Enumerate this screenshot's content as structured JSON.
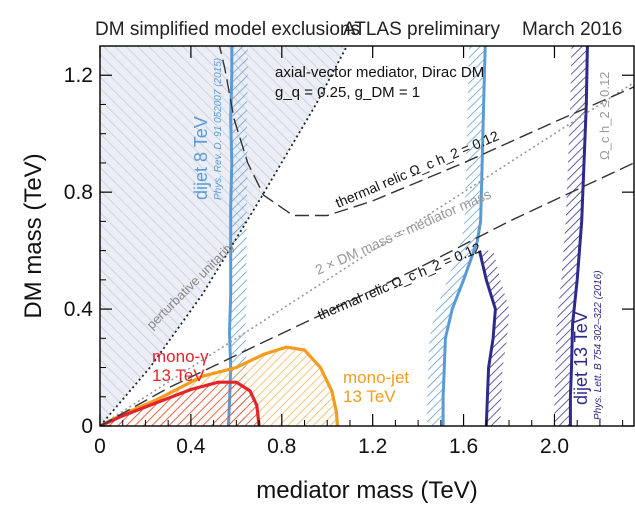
{
  "chart_data": {
    "type": "line",
    "title": "DM simplified model exclusions",
    "header_center": "ATLAS preliminary",
    "header_right": "March 2016",
    "xlabel": "mediator mass (TeV)",
    "ylabel": "DM mass (TeV)",
    "xlim": [
      0,
      2.35
    ],
    "ylim": [
      0,
      1.3
    ],
    "x_ticks": [
      0,
      0.4,
      0.8,
      1.2,
      1.6,
      2.0
    ],
    "x_tick_labels": [
      "0",
      "0.4",
      "0.8",
      "1.2",
      "1.6",
      "2.0"
    ],
    "y_ticks": [
      0,
      0.4,
      0.8,
      1.2
    ],
    "y_tick_labels": [
      "0",
      "0.4",
      "0.8",
      "1.2"
    ],
    "grid": false,
    "model_lines": [
      "axial-vector mediator, Dirac DM",
      "g_q = 0.25, g_DM = 1"
    ],
    "colors": {
      "dijet8": "#5b9bd5",
      "dijet13": "#2e2a8a",
      "monojet": "#f39c1e",
      "monogamma": "#e3242b",
      "relic": "#333333",
      "unitarity": "#222222",
      "diagonal": "#999999",
      "hatch": "#b9bcd6"
    },
    "series": [
      {
        "name": "dijet 8 TeV",
        "ref": "Phys. Rev. D. 91 052007 (2015)",
        "points": [
          [
            0.565,
            0.0
          ],
          [
            0.57,
            0.08
          ],
          [
            0.575,
            0.2
          ],
          [
            0.57,
            0.32
          ],
          [
            0.575,
            0.45
          ],
          [
            0.575,
            0.6
          ],
          [
            0.575,
            0.75
          ],
          [
            0.58,
            0.9
          ],
          [
            0.575,
            1.05
          ],
          [
            0.58,
            1.2
          ],
          [
            0.58,
            1.3
          ]
        ]
      },
      {
        "name": "dijet 13 TeV (8 TeV band)",
        "ref": "",
        "points": [
          [
            1.51,
            0.0
          ],
          [
            1.51,
            0.1
          ],
          [
            1.515,
            0.2
          ],
          [
            1.52,
            0.3
          ],
          [
            1.55,
            0.4
          ],
          [
            1.6,
            0.5
          ],
          [
            1.66,
            0.63
          ],
          [
            1.675,
            0.7
          ],
          [
            1.68,
            0.85
          ],
          [
            1.685,
            1.0
          ],
          [
            1.69,
            1.15
          ],
          [
            1.695,
            1.3
          ]
        ]
      },
      {
        "name": "dijet 13 TeV",
        "ref": "Phys. Lett. B 754 302–322 (2016)",
        "points": [
          [
            2.07,
            0.0
          ],
          [
            2.07,
            0.1
          ],
          [
            2.075,
            0.2
          ],
          [
            2.08,
            0.35
          ],
          [
            2.1,
            0.5
          ],
          [
            2.12,
            0.7
          ],
          [
            2.13,
            0.9
          ],
          [
            2.14,
            1.1
          ],
          [
            2.145,
            1.3
          ]
        ]
      },
      {
        "name": "dijet 13 TeV (low-mass edge)",
        "ref": "",
        "points": [
          [
            1.7,
            0.0
          ],
          [
            1.705,
            0.1
          ],
          [
            1.71,
            0.2
          ],
          [
            1.73,
            0.3
          ],
          [
            1.74,
            0.4
          ],
          [
            1.7,
            0.5
          ],
          [
            1.67,
            0.6
          ]
        ]
      },
      {
        "name": "mono-jet 13 TeV",
        "ref": "",
        "points": [
          [
            0.0,
            0.0
          ],
          [
            0.1,
            0.04
          ],
          [
            0.25,
            0.09
          ],
          [
            0.45,
            0.17
          ],
          [
            0.6,
            0.2
          ],
          [
            0.72,
            0.245
          ],
          [
            0.82,
            0.27
          ],
          [
            0.9,
            0.26
          ],
          [
            0.97,
            0.2
          ],
          [
            1.02,
            0.12
          ],
          [
            1.04,
            0.05
          ],
          [
            1.045,
            0.0
          ]
        ]
      },
      {
        "name": "mono-γ 13 TeV",
        "ref": "",
        "points": [
          [
            0.0,
            0.0
          ],
          [
            0.1,
            0.035
          ],
          [
            0.25,
            0.08
          ],
          [
            0.4,
            0.125
          ],
          [
            0.52,
            0.15
          ],
          [
            0.6,
            0.15
          ],
          [
            0.66,
            0.12
          ],
          [
            0.69,
            0.07
          ],
          [
            0.7,
            0.0
          ]
        ]
      },
      {
        "name": "thermal relic Ω_c h_2 = 0.12",
        "ref": "",
        "points": [
          [
            0.0,
            0.0
          ],
          [
            0.3,
            0.13
          ],
          [
            0.7,
            0.28
          ],
          [
            1.0,
            0.39
          ],
          [
            1.4,
            0.54
          ],
          [
            1.8,
            0.7
          ],
          [
            2.35,
            0.9
          ]
        ]
      },
      {
        "name": "thermal relic Ω_c h_2 = 0.12 (upper)",
        "ref": "",
        "points": [
          [
            0.52,
            1.32
          ],
          [
            0.55,
            1.22
          ],
          [
            0.59,
            1.05
          ],
          [
            0.65,
            0.9
          ],
          [
            0.72,
            0.79
          ],
          [
            0.85,
            0.72
          ],
          [
            1.0,
            0.72
          ],
          [
            1.2,
            0.77
          ],
          [
            1.6,
            0.9
          ],
          [
            2.0,
            1.04
          ],
          [
            2.35,
            1.16
          ]
        ]
      },
      {
        "name": "2 × DM mass = mediator mass",
        "ref": "",
        "points": [
          [
            0.0,
            0.0
          ],
          [
            2.35,
            1.175
          ]
        ]
      },
      {
        "name": "perturbative unitarity",
        "ref": "",
        "points": [
          [
            0.0,
            0.0
          ],
          [
            0.22,
            0.2
          ],
          [
            0.45,
            0.45
          ],
          [
            0.7,
            0.77
          ],
          [
            0.95,
            1.1
          ],
          [
            1.1,
            1.32
          ]
        ]
      }
    ],
    "annotations": [
      {
        "label_key": "model",
        "text": "axial-vector mediator, Dirac DM"
      },
      {
        "label_key": "couplings",
        "text": "g_q = 0.25, g_DM = 1"
      },
      {
        "label_key": "dijet8",
        "text": "dijet 8 TeV"
      },
      {
        "label_key": "dijet8_ref",
        "text": "Phys. Rev. D. 91 052007 (2015)"
      },
      {
        "label_key": "dijet13",
        "text": "dijet 13 TeV"
      },
      {
        "label_key": "dijet13_ref",
        "text": "Phys. Lett. B 754 302–322 (2016)"
      },
      {
        "label_key": "monojet",
        "text": "mono-jet\n13 TeV"
      },
      {
        "label_key": "monogamma",
        "text": "mono-γ\n13 TeV"
      },
      {
        "label_key": "relic",
        "text": "thermal relic Ω_c h_2 = 0.12"
      },
      {
        "label_key": "diag",
        "text": "2 × DM mass = mediator mass"
      },
      {
        "label_key": "unitarity",
        "text": "perturbative unitarity"
      },
      {
        "label_key": "omega_right",
        "text": "Ω_c h_2 ≤ 0.12"
      }
    ]
  }
}
